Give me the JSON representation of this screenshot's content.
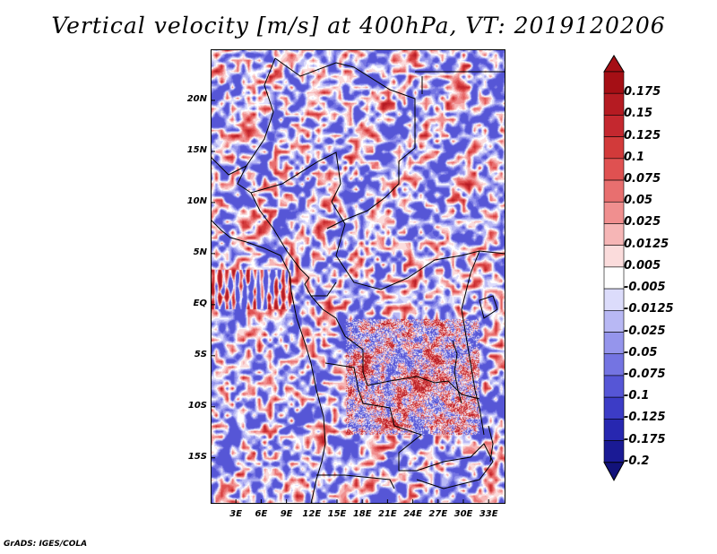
{
  "title": "Vertical velocity [m/s] at 400hPa, VT: 2019120206",
  "credit": "GrADS: IGES/COLA",
  "y_axis": {
    "labels": [
      "20N",
      "15N",
      "10N",
      "5N",
      "EQ",
      "5S",
      "10S",
      "15S"
    ],
    "values": [
      20,
      15,
      10,
      5,
      0,
      -5,
      -10,
      -15
    ],
    "range": [
      -19.5,
      25
    ]
  },
  "x_axis": {
    "labels": [
      "3E",
      "6E",
      "9E",
      "12E",
      "15E",
      "18E",
      "21E",
      "24E",
      "27E",
      "30E",
      "33E"
    ],
    "values": [
      3,
      6,
      9,
      12,
      15,
      18,
      21,
      24,
      27,
      30,
      33
    ],
    "range": [
      0,
      35
    ]
  },
  "colorbar": {
    "labels": [
      "0.175",
      "0.15",
      "0.125",
      "0.1",
      "0.075",
      "0.05",
      "0.025",
      "0.0125",
      "0.005",
      "-0.005",
      "-0.0125",
      "-0.025",
      "-0.05",
      "-0.075",
      "-0.1",
      "-0.125",
      "-0.175",
      "-0.2"
    ],
    "colors": [
      "#a50f15",
      "#b51b22",
      "#c4282f",
      "#d23a3a",
      "#df5151",
      "#e86f6f",
      "#f08f8f",
      "#f6b6b6",
      "#fbdcdc",
      "#ffffff",
      "#dcdcfb",
      "#b8b8f4",
      "#9595ec",
      "#7474e2",
      "#5656d6",
      "#3c3cc6",
      "#2727b0",
      "#1a1a95",
      "#12127a"
    ]
  }
}
